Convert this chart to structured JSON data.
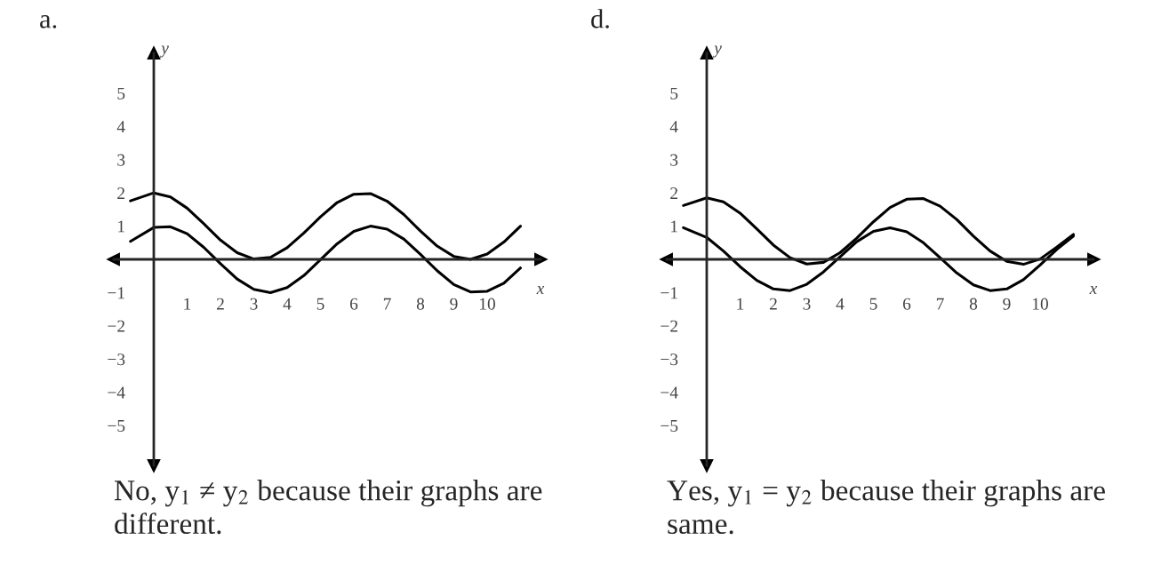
{
  "chart_data": [
    {
      "type": "line",
      "title": "a.",
      "xlabel": "x",
      "ylabel": "y",
      "series": [
        {
          "color": "#000000",
          "x": [
            -0.7,
            0,
            0.5,
            1,
            1.5,
            2,
            2.5,
            3,
            3.5,
            4,
            4.5,
            5,
            5.5,
            6,
            6.5,
            7,
            7.5,
            8,
            8.5,
            9,
            9.5,
            10,
            10.5,
            11
          ],
          "values": [
            1.76,
            2,
            1.88,
            1.54,
            1.07,
            0.58,
            0.2,
            0.01,
            0.06,
            0.35,
            0.79,
            1.28,
            1.71,
            1.96,
            1.98,
            1.75,
            1.35,
            0.85,
            0.4,
            0.09,
            0,
            0.16,
            0.52,
            1
          ]
        },
        {
          "color": "#000000",
          "x": [
            -0.7,
            0,
            0.5,
            1,
            1.5,
            2,
            2.5,
            3,
            3.5,
            4,
            4.5,
            5,
            5.5,
            6,
            6.5,
            7,
            7.5,
            8,
            8.5,
            9,
            9.5,
            10,
            10.5,
            11
          ],
          "values": [
            0.54,
            0.96,
            0.98,
            0.77,
            0.36,
            -0.13,
            -0.59,
            -0.9,
            -1,
            -0.85,
            -0.49,
            -0.01,
            0.47,
            0.84,
            1,
            0.91,
            0.61,
            0.15,
            -0.34,
            -0.76,
            -0.98,
            -0.96,
            -0.72,
            -0.26
          ]
        }
      ],
      "xlim": [
        -1.2,
        11.6
      ],
      "ylim": [
        -6.2,
        6.2
      ],
      "xticks": [
        1,
        2,
        3,
        4,
        5,
        6,
        7,
        8,
        9,
        10
      ],
      "yticks": [
        -5,
        -4,
        -3,
        -2,
        -1,
        1,
        2,
        3,
        4,
        5
      ],
      "grid": false,
      "legend": false,
      "annotations": [
        "No, y$_{1}$ ≠ y$_{2}$ because their graphs are\ndifferent."
      ]
    },
    {
      "type": "line",
      "title": "d.",
      "xlabel": "x",
      "ylabel": "y",
      "series": [
        {
          "color": "#000000",
          "x": [
            -0.7,
            0,
            0.5,
            1,
            1.5,
            2,
            2.5,
            3,
            3.5,
            4,
            4.5,
            5,
            5.5,
            6,
            6.5,
            7,
            7.5,
            8,
            8.5,
            9,
            9.5,
            10,
            10.5,
            11
          ],
          "values": [
            1.62,
            1.85,
            1.73,
            1.39,
            0.92,
            0.43,
            0.05,
            -0.14,
            -0.09,
            0.2,
            0.64,
            1.13,
            1.56,
            1.81,
            1.83,
            1.6,
            1.2,
            0.7,
            0.25,
            -0.06,
            -0.15,
            0.01,
            0.37,
            0.75
          ]
        },
        {
          "color": "#000000",
          "x": [
            -0.7,
            0,
            0.5,
            1,
            1.5,
            2,
            2.5,
            3,
            3.5,
            4,
            4.5,
            5,
            5.5,
            6,
            6.5,
            7,
            7.5,
            8,
            8.5,
            9,
            9.5,
            10,
            10.5,
            11
          ],
          "values": [
            0.95,
            0.66,
            0.25,
            -0.22,
            -0.63,
            -0.89,
            -0.94,
            -0.75,
            -0.38,
            0.08,
            0.53,
            0.84,
            0.95,
            0.83,
            0.5,
            0.05,
            -0.41,
            -0.77,
            -0.94,
            -0.89,
            -0.61,
            -0.17,
            0.3,
            0.7
          ]
        }
      ],
      "xlim": [
        -1.2,
        11.6
      ],
      "ylim": [
        -6.2,
        6.2
      ],
      "xticks": [
        1,
        2,
        3,
        4,
        5,
        6,
        7,
        8,
        9,
        10
      ],
      "yticks": [
        -5,
        -4,
        -3,
        -2,
        -1,
        1,
        2,
        3,
        4,
        5
      ],
      "grid": false,
      "legend": false,
      "annotations": [
        "Yes, y$_{1}$ = y$_{2}$ because their graphs are\nsame."
      ]
    }
  ]
}
